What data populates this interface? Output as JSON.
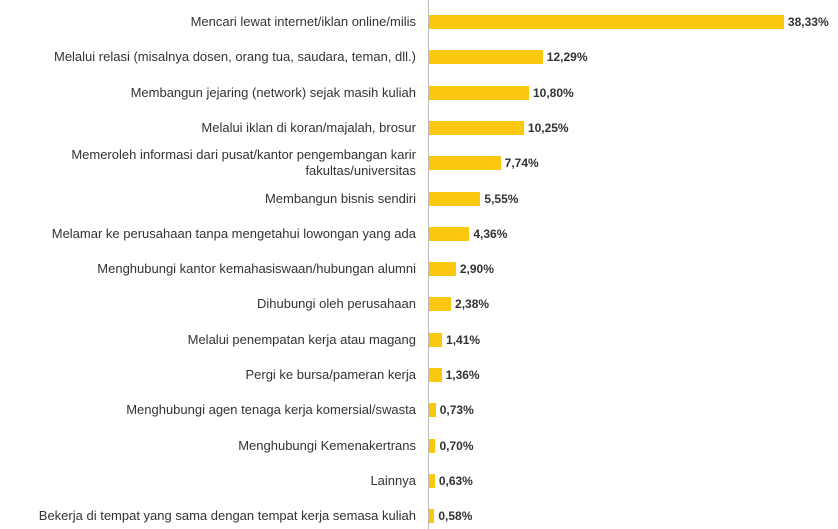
{
  "chart_data": {
    "type": "bar",
    "orientation": "horizontal",
    "color": "#fac80f",
    "categories": [
      "Mencari lewat internet/iklan online/milis",
      "Melalui relasi (misalnya dosen, orang tua, saudara, teman, dll.)",
      "Membangun jejaring (network) sejak masih kuliah",
      "Melalui iklan di koran/majalah, brosur",
      "Memeroleh informasi dari pusat/kantor pengembangan karir fakultas/universitas",
      "Membangun bisnis sendiri",
      "Melamar ke perusahaan tanpa mengetahui lowongan yang ada",
      "Menghubungi kantor kemahasiswaan/hubungan alumni",
      "Dihubungi oleh perusahaan",
      "Melalui penempatan kerja atau magang",
      "Pergi ke bursa/pameran kerja",
      "Menghubungi agen tenaga kerja komersial/swasta",
      "Menghubungi Kemenakertrans",
      "Lainnya",
      "Bekerja di tempat yang sama dengan tempat kerja semasa kuliah"
    ],
    "values": [
      38.33,
      12.29,
      10.8,
      10.25,
      7.74,
      5.55,
      4.36,
      2.9,
      2.38,
      1.41,
      1.36,
      0.73,
      0.7,
      0.63,
      0.58
    ],
    "value_labels": [
      "38,33%",
      "12,29%",
      "10,80%",
      "10,25%",
      "7,74%",
      "5,55%",
      "4,36%",
      "2,90%",
      "2,38%",
      "1,41%",
      "1,36%",
      "0,73%",
      "0,70%",
      "0,63%",
      "0,58%"
    ]
  }
}
